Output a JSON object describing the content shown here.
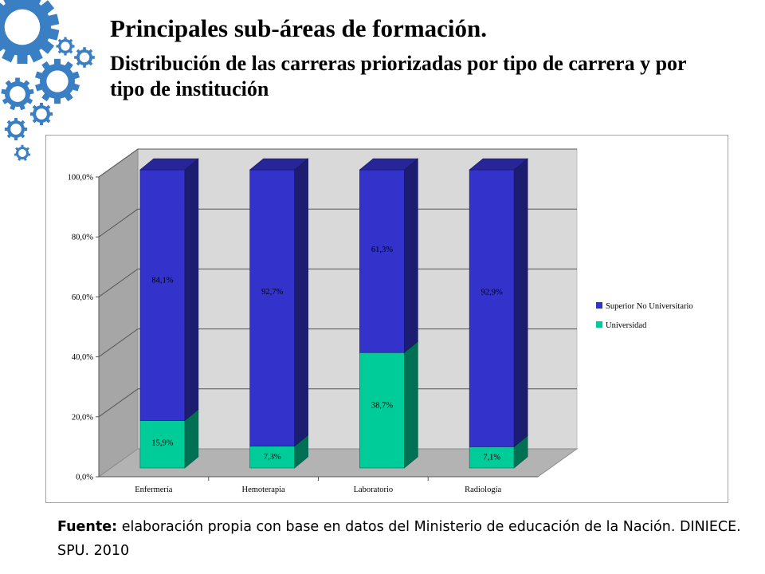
{
  "slide": {
    "title": "Principales sub-áreas de formación.",
    "subtitle": "Distribución de las carreras priorizadas por tipo de carrera y por tipo de institución",
    "source_label": "Fuente:",
    "source_text": "elaboración propia con base en datos del Ministerio de educación de la Nación. DINIECE. SPU. 2010"
  },
  "chart_data": {
    "type": "bar",
    "stacked": true,
    "three_d": true,
    "categories": [
      "Enfermería",
      "Hemoterapia",
      "Laboratorio",
      "Radiología"
    ],
    "series": [
      {
        "name": "Universidad",
        "values": [
          15.9,
          7.3,
          38.7,
          7.1
        ],
        "labels": [
          "15,9%",
          "7,3%",
          "38,7%",
          "7,1%"
        ],
        "color": "#00cc99"
      },
      {
        "name": "Superior No Universitario",
        "values": [
          84.1,
          92.7,
          61.3,
          92.9
        ],
        "labels": [
          "84,1%",
          "92,7%",
          "61,3%",
          "92,9%"
        ],
        "color": "#3333cc"
      }
    ],
    "y_ticks": [
      "0,0%",
      "20,0%",
      "40,0%",
      "60,0%",
      "80,0%",
      "100,0%"
    ],
    "ylim": [
      0,
      100
    ],
    "grid": true,
    "legend_position": "right",
    "legend": [
      "Superior No Universitario",
      "Universidad"
    ]
  },
  "colors": {
    "gear": "#3a7fc4",
    "nonuni": "#3333cc",
    "uni": "#00cc99"
  }
}
